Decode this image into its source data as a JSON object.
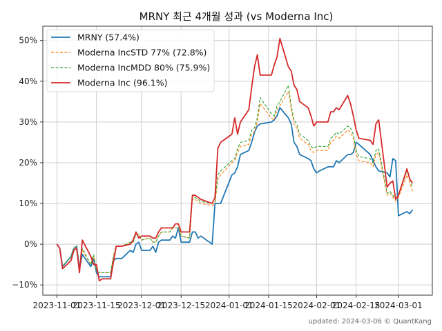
{
  "chart_data": {
    "type": "line",
    "title": "MRNY 최근 4개월 성과 (vs Moderna Inc)",
    "footer": "updated: 2024-03-06 © QuantKang",
    "xlabel": "",
    "ylabel": "",
    "ylim": [
      -12.5,
      53.5
    ],
    "y_ticks": [
      -10,
      0,
      10,
      20,
      30,
      40,
      50
    ],
    "y_tick_labels": [
      "−10%",
      "0%",
      "10%",
      "20%",
      "30%",
      "40%",
      "50%"
    ],
    "x_range": [
      "2023-10-27",
      "2024-03-13"
    ],
    "x_ticks": [
      "2023-11-01",
      "2023-11-15",
      "2023-12-01",
      "2023-12-15",
      "2024-01-01",
      "2024-01-15",
      "2024-02-01",
      "2024-02-15",
      "2024-03-01"
    ],
    "x_tick_labels": [
      "2023-11-01",
      "2023-11-15",
      "2023-12-01",
      "2023-12-15",
      "2024-01-01",
      "2024-01-15",
      "2024-02-01",
      "2024-02-15",
      "2024-03-01"
    ],
    "grid": true,
    "legend_position": "top-left",
    "x": [
      "2023-11-01",
      "2023-11-02",
      "2023-11-03",
      "2023-11-06",
      "2023-11-07",
      "2023-11-08",
      "2023-11-09",
      "2023-11-10",
      "2023-11-13",
      "2023-11-14",
      "2023-11-15",
      "2023-11-16",
      "2023-11-17",
      "2023-11-20",
      "2023-11-21",
      "2023-11-22",
      "2023-11-24",
      "2023-11-27",
      "2023-11-28",
      "2023-11-29",
      "2023-11-30",
      "2023-12-01",
      "2023-12-04",
      "2023-12-05",
      "2023-12-06",
      "2023-12-07",
      "2023-12-08",
      "2023-12-11",
      "2023-12-12",
      "2023-12-13",
      "2023-12-14",
      "2023-12-15",
      "2023-12-18",
      "2023-12-19",
      "2023-12-20",
      "2023-12-21",
      "2023-12-22",
      "2023-12-26",
      "2023-12-27",
      "2023-12-28",
      "2023-12-29",
      "2024-01-02",
      "2024-01-03",
      "2024-01-04",
      "2024-01-05",
      "2024-01-08",
      "2024-01-09",
      "2024-01-10",
      "2024-01-11",
      "2024-01-12",
      "2024-01-16",
      "2024-01-17",
      "2024-01-18",
      "2024-01-19",
      "2024-01-22",
      "2024-01-23",
      "2024-01-24",
      "2024-01-25",
      "2024-01-26",
      "2024-01-29",
      "2024-01-30",
      "2024-01-31",
      "2024-02-01",
      "2024-02-02",
      "2024-02-05",
      "2024-02-06",
      "2024-02-07",
      "2024-02-08",
      "2024-02-09",
      "2024-02-12",
      "2024-02-13",
      "2024-02-14",
      "2024-02-15",
      "2024-02-16",
      "2024-02-20",
      "2024-02-21",
      "2024-02-22",
      "2024-02-23",
      "2024-02-26",
      "2024-02-27",
      "2024-02-28",
      "2024-02-29",
      "2024-03-01",
      "2024-03-04",
      "2024-03-05",
      "2024-03-06"
    ],
    "series": [
      {
        "name": "MRNY (57.4%)",
        "color": "#1f77b4",
        "style": "solid",
        "values": [
          0,
          -1,
          -5.5,
          -3,
          -1,
          -0.5,
          -6,
          -2.5,
          -5.5,
          -3.5,
          -7,
          -8,
          -8,
          -8,
          -4,
          -3.5,
          -3.5,
          -1.5,
          -2,
          0,
          0.5,
          -1.5,
          -1.5,
          -0.5,
          -2,
          0.5,
          1,
          1,
          2,
          1.5,
          4,
          0.5,
          0.5,
          3,
          3,
          1.5,
          2,
          0,
          10,
          10,
          10,
          17,
          17.5,
          19,
          22,
          23,
          25,
          27.5,
          29,
          29.5,
          30,
          30.5,
          31.5,
          33.5,
          31,
          29.5,
          25,
          24,
          22,
          21,
          20.5,
          18.5,
          17.5,
          18,
          19,
          19,
          19,
          20.5,
          20,
          22,
          22,
          22.5,
          25,
          24.5,
          22,
          20.5,
          19,
          18,
          17.5,
          16.5,
          21,
          20.5,
          7,
          8,
          7.5,
          8.5
        ]
      },
      {
        "name": "Moderna IncSTD 77% (72.8%)",
        "color": "#ff7f0e",
        "style": "dashed",
        "values": [
          0,
          -1,
          -5.5,
          -3,
          -1,
          -0.5,
          -6,
          -1.5,
          -5,
          -3,
          -6.5,
          -7,
          -7,
          -7,
          -3,
          -0.5,
          -0.5,
          0.5,
          0.5,
          2.5,
          2.5,
          1,
          1.5,
          0.5,
          0.5,
          2,
          3,
          3,
          4,
          4,
          4,
          2,
          1.5,
          11,
          11,
          10.5,
          10,
          9.5,
          10,
          16,
          17,
          20,
          20.5,
          22.5,
          24,
          24.5,
          27,
          27.5,
          30,
          34.5,
          31,
          30.5,
          33,
          34,
          37.5,
          33,
          29.5,
          28.5,
          26,
          24.5,
          23,
          22.5,
          23,
          23,
          23,
          25,
          25.5,
          26.5,
          26,
          28,
          27.5,
          26,
          22,
          20.5,
          20,
          19,
          22,
          22.5,
          12,
          12.5,
          11.5,
          10.5,
          11.5,
          17,
          15,
          13
        ]
      },
      {
        "name": "Moderna IncMDD 80% (75.9%)",
        "color": "#2ca02c",
        "style": "dashed",
        "values": [
          0,
          -1,
          -5.5,
          -3,
          -1,
          -0.5,
          -6,
          -1,
          -5,
          -2.5,
          -6.5,
          -7,
          -7,
          -7,
          -3,
          -0.5,
          -0.5,
          0.5,
          0.5,
          2.5,
          2.5,
          1,
          1.5,
          0.5,
          0.5,
          2,
          3,
          3,
          4,
          4,
          4,
          2,
          1.5,
          11.5,
          11.5,
          11,
          10.5,
          10,
          10.5,
          17,
          18,
          20.5,
          21,
          23.5,
          25,
          25.5,
          28,
          28.5,
          31,
          36,
          32,
          31.5,
          34,
          35,
          39,
          34,
          30.5,
          29.5,
          27,
          25.5,
          24,
          23.5,
          24,
          24,
          24,
          26,
          26.5,
          27.5,
          27,
          29,
          28.5,
          27,
          23,
          21.5,
          21,
          20,
          23,
          23.5,
          12.5,
          13,
          12,
          11,
          12,
          18,
          16,
          14
        ]
      },
      {
        "name": "Moderna Inc (96.1%)",
        "color": "#d62728",
        "style": "solid",
        "values": [
          0,
          -1,
          -6,
          -4,
          -1.5,
          -1,
          -7,
          1,
          -3,
          -5,
          -5,
          -9,
          -8.5,
          -8.5,
          -4.5,
          -0.5,
          -0.5,
          0,
          1,
          3,
          1.5,
          2,
          2,
          1.5,
          1.5,
          3,
          4,
          4,
          4,
          5,
          5,
          3,
          3,
          12,
          12,
          11.5,
          11,
          10,
          11.5,
          23.5,
          25,
          27,
          31,
          27,
          30,
          33,
          38.5,
          43.5,
          46.5,
          41.5,
          41.5,
          44,
          46,
          50.5,
          43.5,
          42.5,
          39,
          38,
          35,
          33.5,
          31.5,
          29,
          30,
          30,
          30,
          32.5,
          32.5,
          33.5,
          33,
          36.5,
          34.5,
          31.5,
          28,
          26,
          25.5,
          24.5,
          29.5,
          30.5,
          14,
          15,
          15.5,
          11,
          12,
          18.5,
          16,
          15
        ]
      }
    ]
  }
}
